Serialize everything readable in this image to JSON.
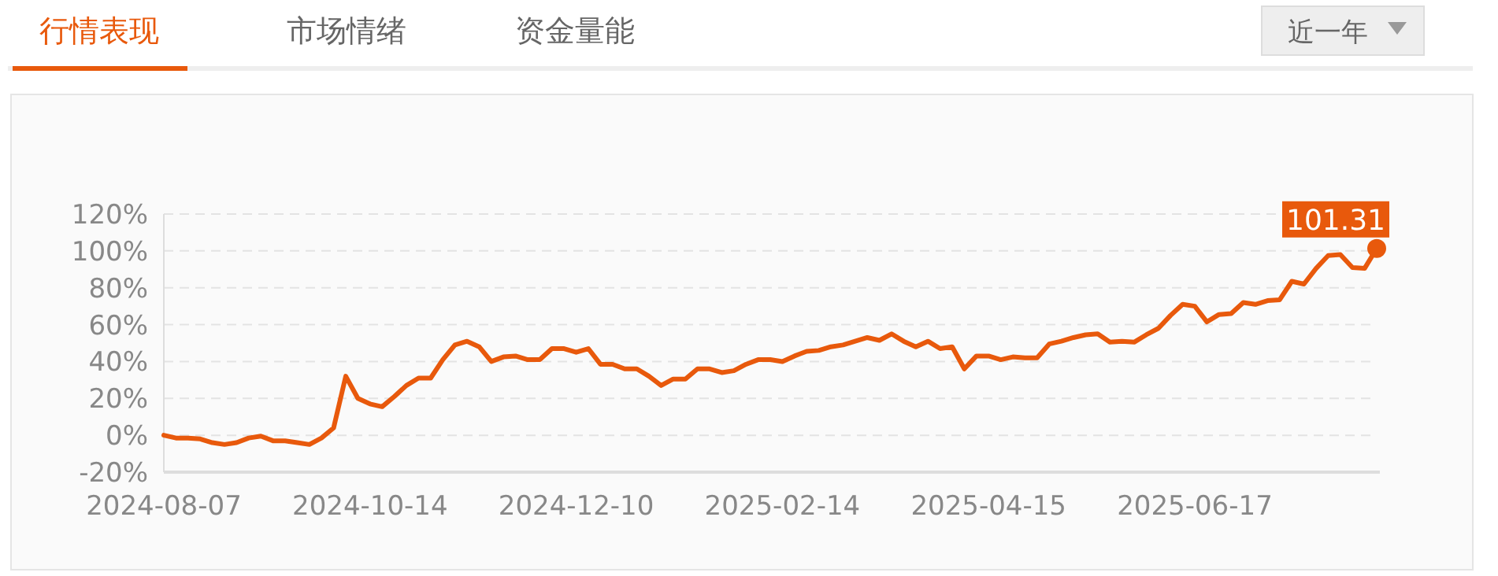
{
  "chart_data": {
    "type": "line",
    "annotations": [
      "行情表现",
      "市场情绪",
      "资金量能",
      "近一年"
    ],
    "categories": [
      "2024-08-07",
      null,
      null,
      null,
      null,
      null,
      null,
      null,
      null,
      null,
      null,
      null,
      null,
      null,
      null,
      null,
      null,
      "2024-10-14",
      null,
      null,
      null,
      null,
      null,
      null,
      null,
      null,
      null,
      null,
      null,
      null,
      null,
      null,
      null,
      null,
      "2024-12-10",
      null,
      null,
      null,
      null,
      null,
      null,
      null,
      null,
      null,
      null,
      null,
      null,
      null,
      null,
      null,
      null,
      "2025-02-14",
      null,
      null,
      null,
      null,
      null,
      null,
      null,
      null,
      null,
      null,
      null,
      null,
      null,
      null,
      null,
      null,
      "2025-04-15",
      null,
      null,
      null,
      null,
      null,
      null,
      null,
      null,
      null,
      null,
      null,
      null,
      null,
      null,
      null,
      null,
      "2025-06-17",
      null,
      null,
      null,
      null,
      null,
      null,
      null,
      null,
      null,
      null,
      null,
      null,
      null,
      null,
      null
    ],
    "series": [
      {
        "color": "#e8590c",
        "values": [
          0,
          -1.5,
          -1.5,
          -2,
          -4,
          -5,
          -4,
          -1.5,
          -0.5,
          -3,
          -3,
          -4,
          -5,
          -1.5,
          4,
          32,
          20,
          17,
          15.5,
          21,
          27,
          31,
          31,
          41,
          49,
          51,
          48,
          40,
          42.5,
          43,
          41,
          41,
          47,
          47,
          45,
          47,
          38.5,
          38.5,
          36,
          36,
          32,
          27,
          30.5,
          30.5,
          36,
          36,
          34,
          35,
          38.5,
          41,
          41,
          40,
          43,
          45.5,
          46,
          48,
          49,
          51,
          53,
          51.5,
          55,
          51,
          48,
          51,
          47,
          48,
          36,
          43,
          43,
          41,
          42.5,
          42,
          42,
          49.5,
          51,
          53,
          54.5,
          55,
          50.5,
          51,
          50.5,
          54.5,
          58,
          65,
          71,
          70,
          61.5,
          65.5,
          66,
          72,
          71,
          73,
          73.5,
          83.5,
          82,
          90.5,
          97.5,
          98,
          91,
          90.5,
          101.31
        ],
        "value_labels": [
          null,
          null,
          null,
          null,
          null,
          null,
          null,
          null,
          null,
          null,
          null,
          null,
          null,
          null,
          null,
          null,
          null,
          null,
          null,
          null,
          null,
          null,
          null,
          null,
          null,
          null,
          null,
          null,
          null,
          null,
          null,
          null,
          null,
          null,
          null,
          null,
          null,
          null,
          null,
          null,
          null,
          null,
          null,
          null,
          null,
          null,
          null,
          null,
          null,
          null,
          null,
          null,
          null,
          null,
          null,
          null,
          null,
          null,
          null,
          null,
          null,
          null,
          null,
          null,
          null,
          null,
          null,
          null,
          null,
          null,
          null,
          null,
          null,
          null,
          null,
          null,
          null,
          null,
          null,
          null,
          null,
          null,
          null,
          null,
          null,
          null,
          null,
          null,
          null,
          null,
          null,
          null,
          null,
          null,
          null,
          null,
          null,
          null,
          null,
          null,
          "101.31"
        ]
      }
    ],
    "ylim": [
      -20,
      120
    ],
    "yticks": [
      {
        "value": -20,
        "label": "-20%"
      },
      {
        "value": 0,
        "label": "0%"
      },
      {
        "value": 20,
        "label": "20%"
      },
      {
        "value": 40,
        "label": "40%"
      },
      {
        "value": 60,
        "label": "60%"
      },
      {
        "value": 80,
        "label": "80%"
      },
      {
        "value": 100,
        "label": "100%"
      },
      {
        "value": 120,
        "label": "120%"
      }
    ],
    "grid": "y",
    "line_style": "solid"
  }
}
